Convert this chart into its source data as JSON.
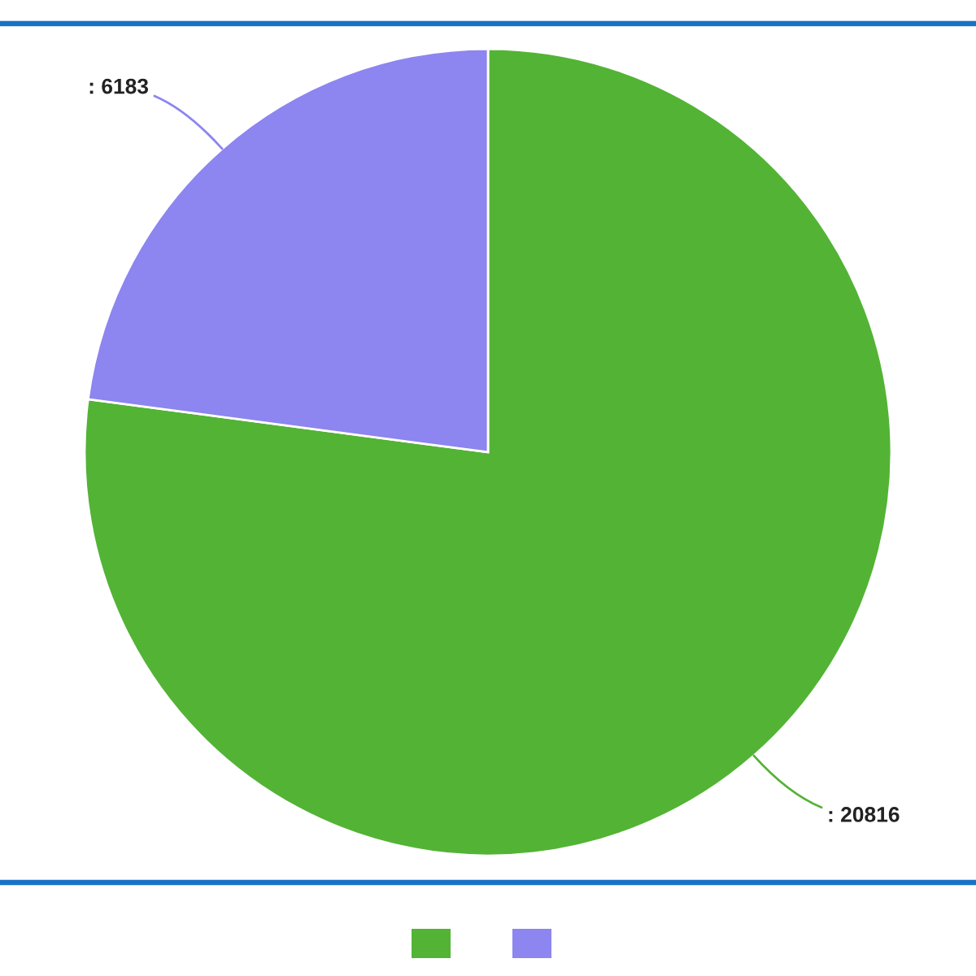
{
  "chart_data": {
    "type": "pie",
    "categories": [
      null,
      null
    ],
    "values": [
      20816,
      6183
    ],
    "colors": [
      "#53b335",
      "#8d85f0"
    ],
    "value_labels": [
      ": 20816",
      ": 6183"
    ]
  }
}
